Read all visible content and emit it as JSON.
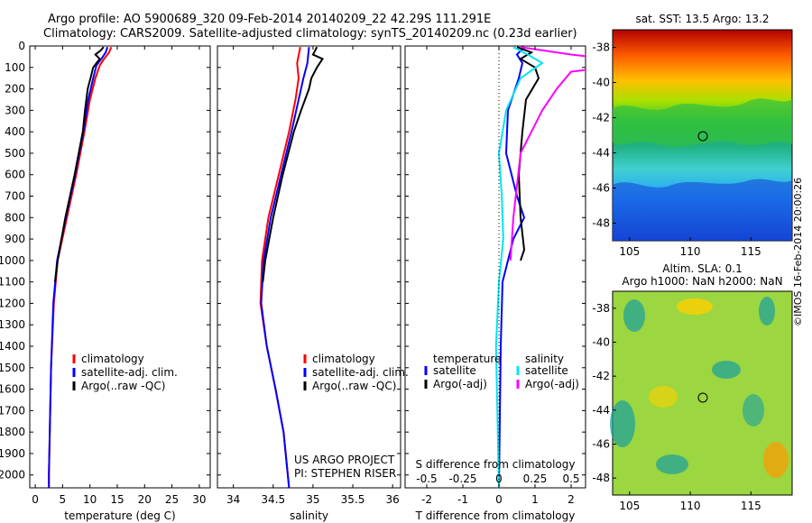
{
  "header": {
    "line1": "Argo profile: AO 5900689_320 09-Feb-2014 20140209_22 42.29S 111.291E",
    "line2": "Climatology: CARS2009. Satellite-adjusted climatology: synTS_20140209.nc (0.23d earlier)"
  },
  "colors": {
    "climatology": "#ff0000",
    "satellite": "#0000ff",
    "argo": "#000000",
    "satellite_s": "#00e5ee",
    "argo_s": "#ff00ff"
  },
  "depth_axis": {
    "min": 0,
    "max": 2060,
    "ticks": [
      "0",
      "100",
      "200",
      "300",
      "400",
      "500",
      "600",
      "700",
      "800",
      "900",
      "1000",
      "1100",
      "1200",
      "1300",
      "1400",
      "1500",
      "1600",
      "1700",
      "1800",
      "1900",
      "2000"
    ]
  },
  "chart_data": [
    {
      "type": "line",
      "xlabel": "temperature (deg C)",
      "xlim": [
        -1,
        32
      ],
      "xticks": [
        "0",
        "5",
        "10",
        "15",
        "20",
        "25",
        "30"
      ],
      "legend": [
        "climatology",
        "satellite-adj. clim.",
        "Argo(..raw -QC)"
      ],
      "series": [
        {
          "name": "climatology",
          "depth": [
            5,
            30,
            60,
            90,
            150,
            250,
            400,
            600,
            800,
            1000,
            1200,
            1500,
            2000,
            2060
          ],
          "values": [
            13.9,
            13.5,
            12.6,
            11.8,
            11.0,
            10.0,
            9.0,
            7.5,
            5.8,
            4.1,
            3.4,
            2.9,
            2.5,
            2.5
          ]
        },
        {
          "name": "satellite-adj. clim.",
          "depth": [
            5,
            30,
            60,
            90,
            150,
            250,
            400,
            600,
            800,
            1000,
            1200,
            1500,
            2000,
            2060
          ],
          "values": [
            13.2,
            12.9,
            12.1,
            11.2,
            10.6,
            9.7,
            8.8,
            7.3,
            5.6,
            4.0,
            3.3,
            2.9,
            2.5,
            2.5
          ]
        },
        {
          "name": "Argo(..raw -QC)",
          "depth": [
            5,
            20,
            40,
            60,
            80,
            100,
            150,
            200,
            300,
            400,
            600,
            800,
            1000,
            1100
          ],
          "values": [
            12.5,
            12.0,
            11.0,
            11.8,
            11.2,
            10.6,
            10.1,
            9.6,
            9.1,
            8.7,
            7.2,
            5.5,
            4.1,
            3.6
          ]
        }
      ]
    },
    {
      "type": "line",
      "xlabel": "salinity",
      "xlim": [
        33.8,
        36.1
      ],
      "xticks": [
        "34",
        "34.5",
        "35",
        "35.5",
        "36"
      ],
      "legend": [
        "climatology",
        "satellite-adj. clim.",
        "Argo(..raw -QC)"
      ],
      "annotation": [
        "US ARGO PROJECT",
        "PI: STEPHEN RISER"
      ],
      "series": [
        {
          "name": "climatology",
          "depth": [
            5,
            80,
            150,
            250,
            400,
            600,
            800,
            1000,
            1200,
            1400,
            1600,
            1800,
            2060
          ],
          "values": [
            34.84,
            34.8,
            34.82,
            34.78,
            34.7,
            34.57,
            34.44,
            34.36,
            34.34,
            34.42,
            34.53,
            34.63,
            34.7
          ]
        },
        {
          "name": "satellite-adj. clim.",
          "depth": [
            5,
            80,
            150,
            250,
            400,
            600,
            800,
            1000,
            1200,
            1400,
            1600,
            1800,
            2060
          ],
          "values": [
            34.95,
            34.93,
            34.88,
            34.82,
            34.73,
            34.6,
            34.47,
            34.38,
            34.35,
            34.42,
            34.53,
            34.63,
            34.7
          ]
        },
        {
          "name": "Argo(..raw -QC)",
          "depth": [
            5,
            40,
            60,
            100,
            150,
            200,
            300,
            400,
            600,
            800,
            1000,
            1100
          ],
          "values": [
            35.05,
            35.0,
            35.12,
            35.05,
            34.98,
            34.95,
            34.85,
            34.76,
            34.62,
            34.5,
            34.4,
            34.37
          ]
        }
      ]
    },
    {
      "type": "line",
      "xlabel": "T difference from climatology",
      "xlabel2": "S difference from climatology",
      "xlim": [
        -2.6,
        2.4
      ],
      "xticks": [
        "-2",
        "-1",
        "0",
        "1",
        "2"
      ],
      "xticks2": [
        "-0.5",
        "-0.25",
        "0",
        "0.25",
        "0.5"
      ],
      "legend_headers": [
        "temperature",
        "salinity"
      ],
      "legend": [
        "satellite",
        "Argo(-adj)",
        "satellite",
        "Argo(-adj)"
      ],
      "series": [
        {
          "name": "satellite",
          "var": "T",
          "depth": [
            5,
            40,
            80,
            150,
            300,
            500,
            700,
            800,
            900,
            1100,
            1400,
            2060
          ],
          "values": [
            0.7,
            0.5,
            0.65,
            0.55,
            0.25,
            0.2,
            0.5,
            0.7,
            0.4,
            0.1,
            0.05,
            0.0
          ]
        },
        {
          "name": "Argo(-adj)",
          "var": "T",
          "depth": [
            5,
            30,
            60,
            100,
            150,
            250,
            400,
            600,
            800,
            950,
            1000
          ],
          "values": [
            0.5,
            0.9,
            0.6,
            1.0,
            1.1,
            0.75,
            0.65,
            0.55,
            0.6,
            0.7,
            0.6
          ]
        },
        {
          "name": "satellite",
          "var": "S",
          "depth": [
            5,
            40,
            80,
            150,
            300,
            500,
            700,
            900,
            1100,
            1400,
            2060
          ],
          "values": [
            0.1,
            0.2,
            0.3,
            0.15,
            0.05,
            0.0,
            0.02,
            0.03,
            0.0,
            -0.02,
            0.0
          ]
        },
        {
          "name": "Argo(-adj)",
          "var": "S",
          "depth": [
            5,
            40,
            80,
            120,
            200,
            300,
            500,
            800,
            1000
          ],
          "values": [
            0.15,
            0.5,
            1.0,
            0.5,
            0.4,
            0.3,
            0.15,
            0.1,
            0.08
          ]
        }
      ]
    }
  ],
  "map_sst": {
    "title": "sat. SST: 13.5 Argo: 13.2",
    "yticks": [
      "-38",
      "-40",
      "-42",
      "-44",
      "-46",
      "-48"
    ],
    "xticks": [
      "105",
      "110",
      "115"
    ]
  },
  "map_sla": {
    "title1": "Altim. SLA: 0.1",
    "title2": "Argo h1000: NaN h2000: NaN",
    "yticks": [
      "-38",
      "-40",
      "-42",
      "-44",
      "-46",
      "-48"
    ],
    "xticks": [
      "105",
      "110",
      "115"
    ]
  },
  "stamp": "©IMOS 16-Feb-2014 20:00:26"
}
